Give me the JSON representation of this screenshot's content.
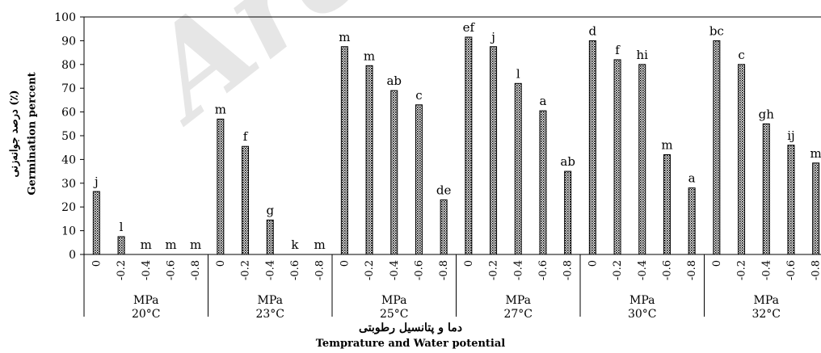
{
  "watermark": "Archive",
  "chart_data": {
    "type": "bar",
    "ylim": [
      0,
      100
    ],
    "yticks": [
      0,
      10,
      20,
      30,
      40,
      50,
      60,
      70,
      80,
      90,
      100
    ],
    "ylabel_fa": "درصد جوانه‌زنی (٪)",
    "ylabel_en": "Germination percent",
    "xlabel_fa": "دما و پتانسیل رطوبتی",
    "xlabel_en": "Temprature and Water potential",
    "group_unit": "MPa",
    "potentials": [
      "0",
      "-0.2",
      "-0.4",
      "-0.6",
      "-0.8"
    ],
    "groups": [
      {
        "temp": "20°C",
        "values": [
          26.5,
          7.5,
          0,
          0,
          0
        ],
        "letters": [
          "j",
          "l",
          "m",
          "m",
          "m"
        ]
      },
      {
        "temp": "23°C",
        "values": [
          57,
          45.5,
          14.5,
          0,
          0
        ],
        "letters": [
          "m",
          "f",
          "g",
          "k",
          "m"
        ]
      },
      {
        "temp": "25°C",
        "values": [
          87.5,
          79.5,
          69,
          63,
          23
        ],
        "letters": [
          "m",
          "m",
          "ab",
          "c",
          "de"
        ]
      },
      {
        "temp": "27°C",
        "values": [
          91.5,
          87.5,
          72,
          60.5,
          35
        ],
        "letters": [
          "ef",
          "j",
          "l",
          "a",
          "ab"
        ]
      },
      {
        "temp": "30°C",
        "values": [
          90,
          82,
          80,
          42,
          28
        ],
        "letters": [
          "d",
          "f",
          "hi",
          "m",
          "a"
        ]
      },
      {
        "temp": "32°C",
        "values": [
          90,
          80,
          55,
          46,
          38.5
        ],
        "letters": [
          "bc",
          "c",
          "gh",
          "ij",
          "m"
        ]
      }
    ]
  }
}
